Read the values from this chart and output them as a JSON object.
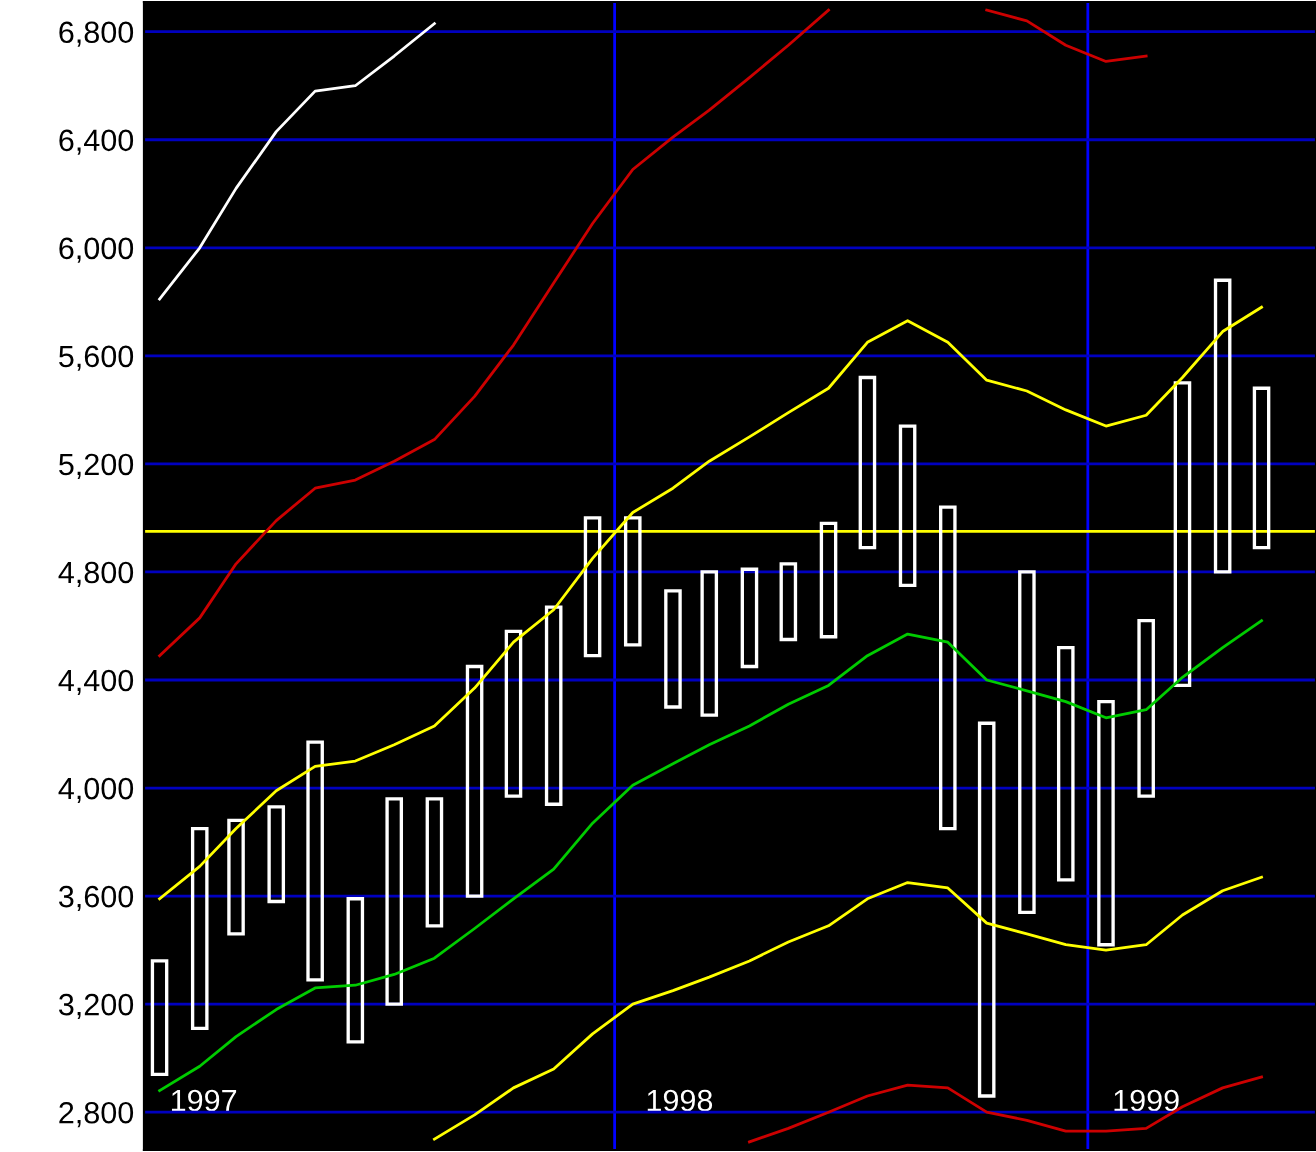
{
  "chart_data": {
    "type": "bar",
    "x": [
      "1997-01-15",
      "1997-02-15",
      "1997-03-15",
      "1997-04-15",
      "1997-05-15",
      "1997-06-15",
      "1997-07-15",
      "1997-08-15",
      "1997-09-15",
      "1997-10-15",
      "1997-11-15",
      "1997-12-15",
      "1998-01-15",
      "1998-02-15",
      "1998-03-15",
      "1998-04-15",
      "1998-05-15",
      "1998-06-15",
      "1998-07-15",
      "1998-08-15",
      "1998-09-15",
      "1998-10-15",
      "1998-11-15",
      "1998-12-15",
      "1999-01-15",
      "1999-02-15",
      "1999-03-15",
      "1999-04-15",
      "1999-05-15"
    ],
    "series": [
      {
        "type": "line",
        "color": "#ffffff",
        "values": [
          5810,
          6000,
          6220,
          6430,
          6580,
          6600,
          6710,
          6830,
          null,
          null,
          null,
          null,
          null,
          null,
          null,
          null,
          null,
          null,
          null,
          null,
          null,
          null,
          null,
          null,
          null,
          null,
          null,
          null,
          null
        ]
      },
      {
        "type": "line",
        "color": "#cc0000",
        "values": [
          4490,
          4630,
          4830,
          4990,
          5110,
          5140,
          5210,
          5290,
          5450,
          5640,
          5870,
          6090,
          6290,
          6410,
          6510,
          6630,
          6750,
          6880,
          null,
          null,
          null,
          6880,
          6840,
          6750,
          6690,
          6710,
          null,
          null,
          null
        ]
      },
      {
        "type": "line",
        "color": "#ffff00",
        "values": [
          3590,
          3710,
          3850,
          3990,
          4080,
          4100,
          4160,
          4230,
          4370,
          4540,
          4660,
          4850,
          5020,
          5110,
          5210,
          5300,
          5390,
          5480,
          5650,
          5730,
          5650,
          5510,
          5470,
          5400,
          5340,
          5380,
          5520,
          5690,
          5780
        ]
      },
      {
        "type": "line",
        "color": "#00cc00",
        "values": [
          2880,
          2970,
          3080,
          3180,
          3260,
          3270,
          3310,
          3370,
          3480,
          3590,
          3700,
          3870,
          4010,
          4090,
          4160,
          4230,
          4310,
          4380,
          4490,
          4570,
          4540,
          4400,
          4360,
          4320,
          4260,
          4290,
          4410,
          4520,
          4620
        ]
      },
      {
        "type": "line",
        "color": "#ffff00",
        "values": [
          null,
          null,
          null,
          null,
          null,
          null,
          null,
          2700,
          2790,
          2890,
          2960,
          3090,
          3200,
          3250,
          3300,
          3360,
          3430,
          3490,
          3590,
          3650,
          3630,
          3500,
          3460,
          3420,
          3400,
          3420,
          3530,
          3620,
          3670
        ]
      },
      {
        "type": "line",
        "color": "#cc0000",
        "values": [
          null,
          null,
          null,
          null,
          null,
          null,
          null,
          null,
          null,
          null,
          null,
          null,
          null,
          null,
          null,
          2690,
          2740,
          2800,
          2860,
          2900,
          2890,
          2800,
          2770,
          2730,
          2730,
          2740,
          2820,
          2890,
          2930
        ]
      },
      {
        "color": "#ffffff",
        "base": [
          2940,
          3110,
          3460,
          3580,
          3290,
          3060,
          3200,
          3490,
          3600,
          3970,
          3940,
          4490,
          4530,
          4300,
          4270,
          4450,
          4550,
          4560,
          4890,
          4750,
          3850,
          2860,
          3540,
          3660,
          3420,
          3970,
          4380,
          4800,
          4890
        ],
        "values": [
          420,
          740,
          420,
          350,
          880,
          530,
          760,
          470,
          850,
          610,
          730,
          510,
          470,
          430,
          530,
          360,
          280,
          420,
          630,
          590,
          1190,
          1380,
          1260,
          860,
          900,
          650,
          1120,
          1080,
          590
        ]
      }
    ],
    "xlim": [
      "1997-01-03",
      "1999-06-26"
    ],
    "xticks": [
      {
        "value": "1997-02-18",
        "label": "1997"
      },
      {
        "value": "1998-02-20",
        "label": "1998"
      },
      {
        "value": "1999-02-15",
        "label": "1999"
      }
    ],
    "ylim": [
      2660,
      6910
    ],
    "yticks": [
      {
        "value": 2800,
        "label": "2,800"
      },
      {
        "value": 3200,
        "label": "3,200"
      },
      {
        "value": 3600,
        "label": "3,600"
      },
      {
        "value": 4000,
        "label": "4,000"
      },
      {
        "value": 4400,
        "label": "4,400"
      },
      {
        "value": 4800,
        "label": "4,800"
      },
      {
        "value": 5200,
        "label": "5,200"
      },
      {
        "value": 5600,
        "label": "5,600"
      },
      {
        "value": 6000,
        "label": "6,000"
      },
      {
        "value": 6400,
        "label": "6,400"
      },
      {
        "value": 6800,
        "label": "6,800"
      }
    ],
    "grid": "y",
    "ref_lines": [
      {
        "axis": "x",
        "value": "1998-01-01",
        "color": "#0000ff"
      },
      {
        "axis": "x",
        "value": "1999-01-01",
        "color": "#0000ff"
      },
      {
        "axis": "y",
        "value": 4950,
        "color": "#ffff00"
      }
    ],
    "legend": false
  }
}
